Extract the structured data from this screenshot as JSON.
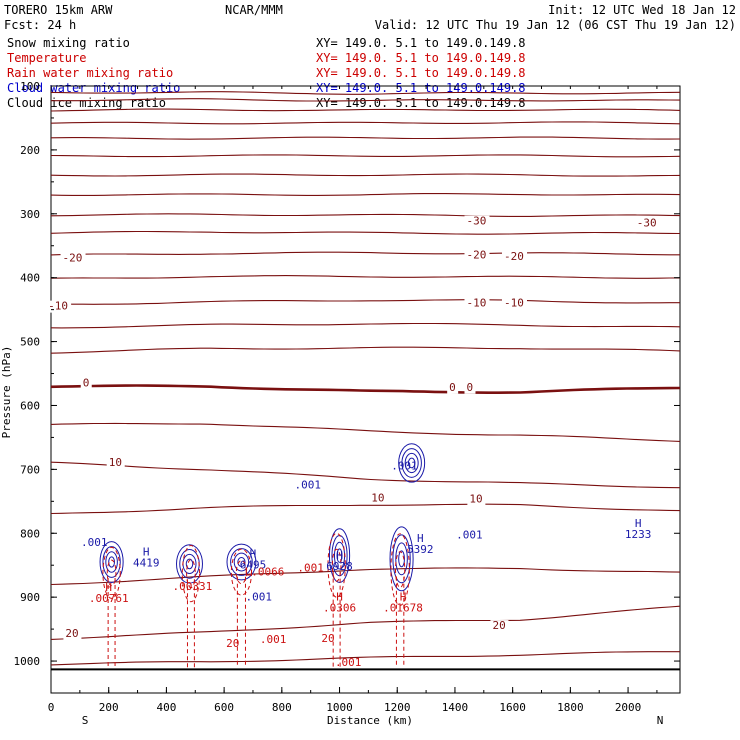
{
  "header": {
    "model": "TORERO  15km ARW",
    "center": "NCAR/MMM",
    "init": "Init: 12 UTC Wed 18 Jan 12",
    "fcst": "Fcst:   24 h",
    "valid": "Valid: 12 UTC Thu 19 Jan 12 (06 CST Thu 19 Jan 12)"
  },
  "legend": [
    {
      "label": "Snow mixing ratio",
      "range": "XY= 149.0.  5.1 to 149.0.149.8",
      "color": "#000000"
    },
    {
      "label": "Temperature",
      "range": "XY= 149.0.  5.1 to 149.0.149.8",
      "color": "#cc0000"
    },
    {
      "label": "Rain water mixing ratio",
      "range": "XY= 149.0.  5.1 to 149.0.149.8",
      "color": "#cc0000"
    },
    {
      "label": "Cloud water mixing ratio",
      "range": "XY= 149.0.  5.1 to 149.0.149.8",
      "color": "#0000cc"
    },
    {
      "label": "Cloud ice mixing ratio",
      "range": "XY= 149.0.  5.1 to 149.0.149.8",
      "color": "#000000"
    }
  ],
  "chart_data": {
    "type": "contour-cross-section",
    "xlabel": "Distance (km)",
    "ylabel": "Pressure (hPa)",
    "xlim": [
      0,
      2180
    ],
    "ylim": [
      1050,
      100
    ],
    "x_ticks": [
      "0",
      "200",
      "400",
      "600",
      "800",
      "1000",
      "1200",
      "1400",
      "1600",
      "1800",
      "2000"
    ],
    "x_tick_values": [
      0,
      200,
      400,
      600,
      800,
      1000,
      1200,
      1400,
      1600,
      1800,
      2000
    ],
    "y_ticks": [
      "100",
      "200",
      "300",
      "400",
      "500",
      "600",
      "700",
      "800",
      "900",
      "1000"
    ],
    "y_tick_values": [
      100,
      200,
      300,
      400,
      500,
      600,
      700,
      800,
      900,
      1000
    ],
    "left_end_label": "S",
    "right_end_label": "N",
    "surface_pressure": 1013,
    "isotherms": [
      {
        "pressure": [
          110,
          110,
          112,
          111,
          111
        ],
        "label": ""
      },
      {
        "pressure": [
          122,
          121,
          123,
          122,
          123
        ],
        "label": ""
      },
      {
        "pressure": [
          138,
          137,
          138,
          137,
          138
        ],
        "label": ""
      },
      {
        "pressure": [
          158,
          158,
          158,
          157,
          158
        ],
        "label": ""
      },
      {
        "pressure": [
          182,
          182,
          181,
          181,
          182
        ],
        "label": ""
      },
      {
        "pressure": [
          210,
          209,
          209,
          209,
          210
        ],
        "label": ""
      },
      {
        "pressure": [
          240,
          239,
          239,
          239,
          241
        ],
        "label": ""
      },
      {
        "pressure": [
          270,
          270,
          270,
          269,
          271
        ],
        "label": ""
      },
      {
        "pressure": [
          302,
          301,
          302,
          303,
          303
        ],
        "label": ""
      },
      {
        "pressure": [
          330,
          328,
          330,
          331,
          330
        ],
        "label": "-30"
      },
      {
        "pressure": [
          365,
          362,
          361,
          362,
          363
        ],
        "label": "-20"
      },
      {
        "pressure": [
          402,
          398,
          398,
          399,
          400
        ],
        "label": ""
      },
      {
        "pressure": [
          442,
          438,
          435,
          436,
          440
        ],
        "label": "-10"
      },
      {
        "pressure": [
          478,
          474,
          472,
          474,
          478
        ],
        "label": ""
      },
      {
        "pressure": [
          517,
          511,
          510,
          510,
          515
        ],
        "label": ""
      },
      {
        "pressure": [
          570,
          570,
          578,
          579,
          572
        ],
        "label": "0"
      },
      {
        "pressure": [
          630,
          628,
          640,
          647,
          655
        ],
        "label": ""
      },
      {
        "pressure": [
          690,
          700,
          715,
          722,
          728
        ],
        "label": "10"
      },
      {
        "pressure": [
          770,
          760,
          755,
          756,
          765
        ],
        "label": ""
      },
      {
        "pressure": [
          880,
          868,
          856,
          855,
          862
        ],
        "label": ""
      },
      {
        "pressure": [
          965,
          955,
          940,
          935,
          915
        ],
        "label": "20"
      },
      {
        "pressure": [
          1005,
          1001,
          995,
          990,
          985
        ],
        "label": ""
      }
    ],
    "temperature_labels": [
      {
        "x": 40,
        "p": 375,
        "text": "-20"
      },
      {
        "x": 1440,
        "p": 317,
        "text": "-30"
      },
      {
        "x": 2030,
        "p": 320,
        "text": "-30"
      },
      {
        "x": 1440,
        "p": 370,
        "text": "-20"
      },
      {
        "x": 1570,
        "p": 372,
        "text": "-20"
      },
      {
        "x": -10,
        "p": 450,
        "text": "-10"
      },
      {
        "x": 1440,
        "p": 445,
        "text": "-10"
      },
      {
        "x": 1570,
        "p": 445,
        "text": "-10"
      },
      {
        "x": 110,
        "p": 570,
        "text": "0"
      },
      {
        "x": 1380,
        "p": 577,
        "text": "0"
      },
      {
        "x": 1440,
        "p": 577,
        "text": "0"
      },
      {
        "x": 200,
        "p": 695,
        "text": "10"
      },
      {
        "x": 1110,
        "p": 750,
        "text": "10"
      },
      {
        "x": 1450,
        "p": 752,
        "text": "10"
      },
      {
        "x": 50,
        "p": 962,
        "text": "20"
      },
      {
        "x": 1530,
        "p": 950,
        "text": "20"
      }
    ],
    "cloud_water_labels": [
      {
        "x": 150,
        "p": 820,
        "text": ".001"
      },
      {
        "x": 330,
        "p": 835,
        "text": "H\n4419"
      },
      {
        "x": 700,
        "p": 838,
        "text": "H\n6495"
      },
      {
        "x": 890,
        "p": 730,
        "text": ".001"
      },
      {
        "x": 1000,
        "p": 840,
        "text": "H\n6928"
      },
      {
        "x": 1225,
        "p": 700,
        "text": ".001"
      },
      {
        "x": 1280,
        "p": 814,
        "text": "H\n5392"
      },
      {
        "x": 1450,
        "p": 808,
        "text": ".001"
      },
      {
        "x": 2035,
        "p": 790,
        "text": "H\n1233"
      },
      {
        "x": 720,
        "p": 905,
        "text": ".001"
      }
    ],
    "rain_water_labels": [
      {
        "x": 200,
        "p": 890,
        "text": "H\n.00761"
      },
      {
        "x": 490,
        "p": 889,
        "text": ".00331"
      },
      {
        "x": 740,
        "p": 866,
        "text": "L.0066"
      },
      {
        "x": 900,
        "p": 860,
        "text": ".001"
      },
      {
        "x": 1000,
        "p": 905,
        "text": "H\n.0306"
      },
      {
        "x": 1220,
        "p": 905,
        "text": "H\n.01678"
      },
      {
        "x": 770,
        "p": 972,
        "text": ".001"
      },
      {
        "x": 1030,
        "p": 1008,
        "text": ".001"
      },
      {
        "x": 630,
        "p": 978,
        "text": "20"
      },
      {
        "x": 960,
        "p": 970,
        "text": "20"
      }
    ],
    "cloud_water_cells": [
      {
        "x": 210,
        "p": 845,
        "rx": 40,
        "rp": 32
      },
      {
        "x": 480,
        "p": 848,
        "rx": 45,
        "rp": 30
      },
      {
        "x": 660,
        "p": 845,
        "rx": 50,
        "rp": 28
      },
      {
        "x": 1000,
        "p": 835,
        "rx": 35,
        "rp": 42
      },
      {
        "x": 1215,
        "p": 840,
        "rx": 40,
        "rp": 50
      },
      {
        "x": 1250,
        "p": 690,
        "rx": 45,
        "rp": 30
      }
    ],
    "rain_cells": [
      {
        "x": 210,
        "p": 850,
        "rx": 30,
        "rp": 20
      },
      {
        "x": 485,
        "p": 850,
        "rx": 30,
        "rp": 22
      },
      {
        "x": 660,
        "p": 850,
        "rx": 35,
        "rp": 18
      },
      {
        "x": 990,
        "p": 835,
        "rx": 30,
        "rp": 25
      },
      {
        "x": 1210,
        "p": 840,
        "rx": 32,
        "rp": 28
      }
    ]
  }
}
